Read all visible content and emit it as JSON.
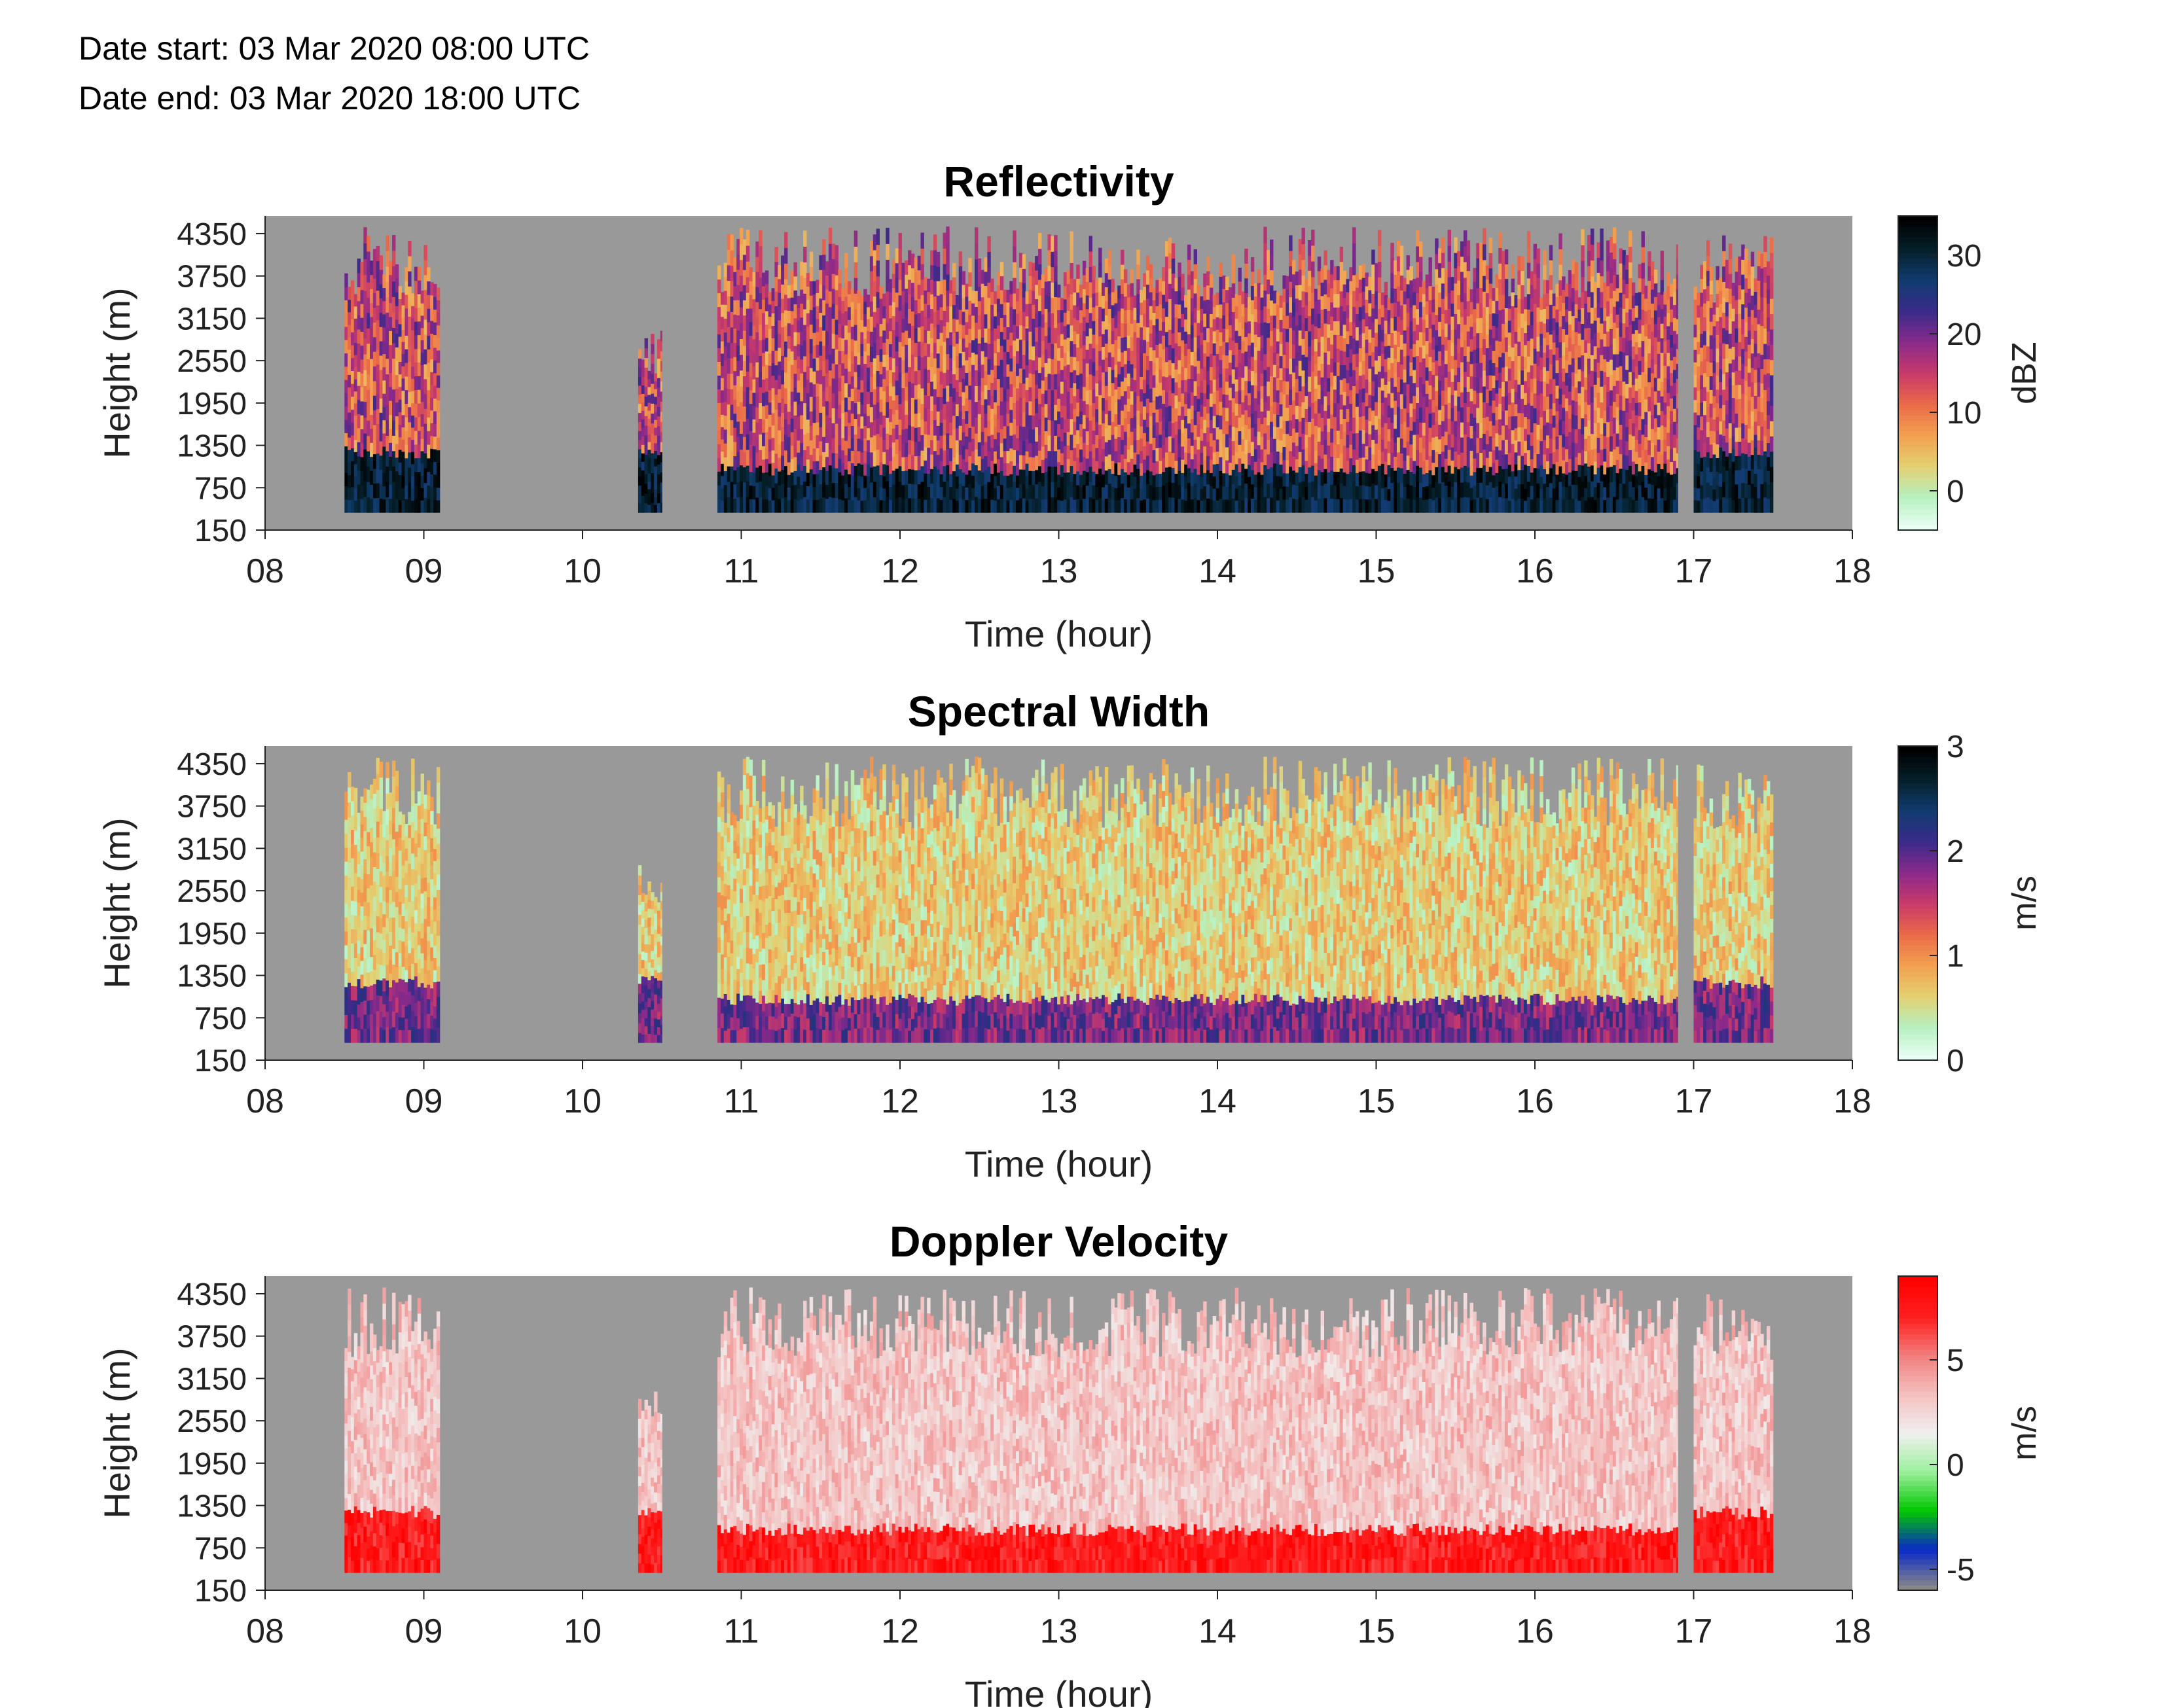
{
  "header": {
    "date_start": "Date start: 03 Mar 2020 08:00 UTC",
    "date_end": "Date end:  03 Mar 2020 18:00 UTC"
  },
  "chart_data": [
    {
      "type": "heatmap",
      "title": "Reflectivity",
      "xlabel": "Time (hour)",
      "ylabel": "Height (m)",
      "xticks": [
        "08",
        "09",
        "10",
        "11",
        "12",
        "13",
        "14",
        "15",
        "16",
        "17",
        "18"
      ],
      "yticks": [
        "150",
        "750",
        "1350",
        "1950",
        "2550",
        "3150",
        "3750",
        "4350"
      ],
      "xlim": [
        8,
        18
      ],
      "ylim": [
        150,
        4600
      ],
      "colorbar": {
        "label": "dBZ",
        "ticks": [
          "0",
          "10",
          "20",
          "30"
        ],
        "tick_values": [
          0,
          10,
          20,
          30
        ],
        "range": [
          -5,
          35
        ]
      },
      "segments": [
        {
          "start": 8.5,
          "end": 9.1,
          "top": 4450,
          "base": 400,
          "low_band_top": 1350
        },
        {
          "start": 10.35,
          "end": 10.5,
          "top": 3000,
          "base": 400,
          "low_band_top": 1350
        },
        {
          "start": 10.85,
          "end": 13.35,
          "top": 4450,
          "base": 400,
          "low_band_top": 1100
        },
        {
          "start": 13.35,
          "end": 16.9,
          "top": 4450,
          "base": 400,
          "low_band_top": 1100
        },
        {
          "start": 17.0,
          "end": 17.5,
          "top": 4350,
          "base": 400,
          "low_band_top": 1350
        }
      ]
    },
    {
      "type": "heatmap",
      "title": "Spectral Width",
      "xlabel": "Time (hour)",
      "ylabel": "Height (m)",
      "xticks": [
        "08",
        "09",
        "10",
        "11",
        "12",
        "13",
        "14",
        "15",
        "16",
        "17",
        "18"
      ],
      "yticks": [
        "150",
        "750",
        "1350",
        "1950",
        "2550",
        "3150",
        "3750",
        "4350"
      ],
      "xlim": [
        8,
        18
      ],
      "ylim": [
        150,
        4600
      ],
      "colorbar": {
        "label": "m/s",
        "ticks": [
          "0",
          "1",
          "2",
          "3"
        ],
        "tick_values": [
          0,
          1,
          2,
          3
        ],
        "range": [
          0,
          3
        ]
      },
      "segments": [
        {
          "start": 8.5,
          "end": 9.1,
          "top": 4450,
          "base": 400,
          "low_band_top": 1350
        },
        {
          "start": 10.35,
          "end": 10.5,
          "top": 3000,
          "base": 400,
          "low_band_top": 1350
        },
        {
          "start": 10.85,
          "end": 13.35,
          "top": 4450,
          "base": 400,
          "low_band_top": 1100
        },
        {
          "start": 13.35,
          "end": 16.9,
          "top": 4450,
          "base": 400,
          "low_band_top": 1100
        },
        {
          "start": 17.0,
          "end": 17.5,
          "top": 4350,
          "base": 400,
          "low_band_top": 1350
        }
      ]
    },
    {
      "type": "heatmap",
      "title": "Doppler Velocity",
      "xlabel": "Time (hour)",
      "ylabel": "Height (m)",
      "xticks": [
        "08",
        "09",
        "10",
        "11",
        "12",
        "13",
        "14",
        "15",
        "16",
        "17",
        "18"
      ],
      "yticks": [
        "150",
        "750",
        "1350",
        "1950",
        "2550",
        "3150",
        "3750",
        "4350"
      ],
      "xlim": [
        8,
        18
      ],
      "ylim": [
        150,
        4600
      ],
      "colorbar": {
        "label": "m/s",
        "ticks": [
          "-5",
          "0",
          "5"
        ],
        "tick_values": [
          -5,
          0,
          5
        ],
        "range": [
          -6,
          9
        ]
      },
      "segments": [
        {
          "start": 8.5,
          "end": 9.1,
          "top": 4450,
          "base": 400,
          "low_band_top": 1350
        },
        {
          "start": 10.35,
          "end": 10.5,
          "top": 3000,
          "base": 400,
          "low_band_top": 1350
        },
        {
          "start": 10.85,
          "end": 13.35,
          "top": 4450,
          "base": 400,
          "low_band_top": 1100
        },
        {
          "start": 13.35,
          "end": 16.9,
          "top": 4450,
          "base": 400,
          "low_band_top": 1100
        },
        {
          "start": 17.0,
          "end": 17.5,
          "top": 4350,
          "base": 400,
          "low_band_top": 1350
        }
      ]
    }
  ],
  "colors": {
    "missing": "#999999",
    "reflectivity_scale": [
      "#eafff5",
      "#b6f0c0",
      "#e3d070",
      "#f2a050",
      "#ea6a48",
      "#c83a6a",
      "#8a2a8a",
      "#3a2a8a",
      "#103c70",
      "#05202a",
      "#000000"
    ],
    "width_scale": [
      "#eafff5",
      "#b6f0c0",
      "#e3d070",
      "#f2a050",
      "#ea6a48",
      "#c83a6a",
      "#8a2a8a",
      "#3a2a8a",
      "#103c70",
      "#05202a",
      "#000000"
    ],
    "velocity_scale": [
      "#888888",
      "#0a28c8",
      "#00c800",
      "#9af09a",
      "#f0f0f0",
      "#f4c0c0",
      "#f08080",
      "#ff2020",
      "#ff0000"
    ]
  }
}
